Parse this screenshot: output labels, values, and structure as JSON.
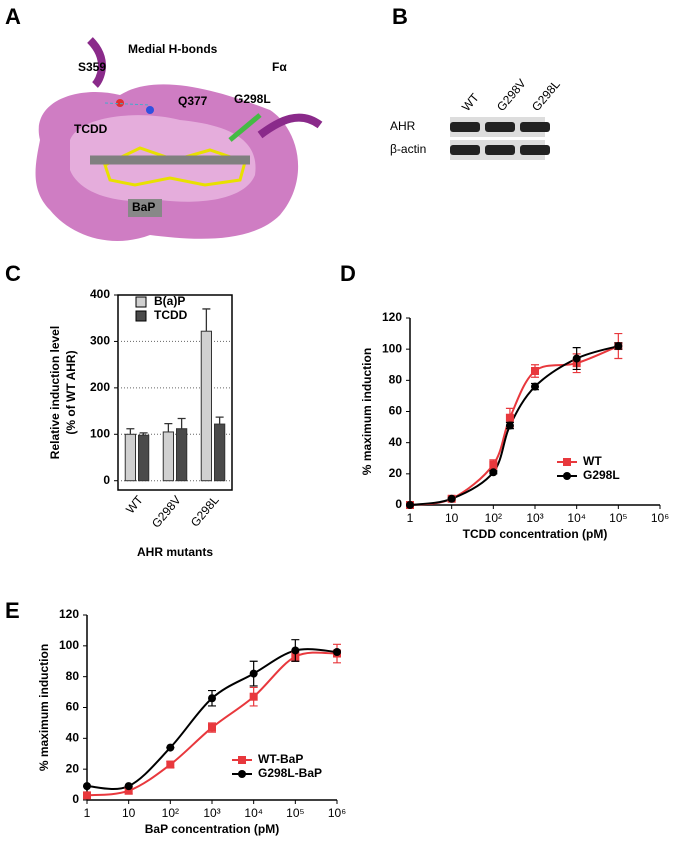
{
  "panel_labels": [
    "A",
    "B",
    "C",
    "D",
    "E"
  ],
  "structure": {
    "labels": [
      "Medial H-bonds",
      "S359",
      "Q377",
      "Fα",
      "G298L",
      "TCDD",
      "BaP"
    ]
  },
  "blot": {
    "lanes": [
      "WT",
      "G298V",
      "G298L"
    ],
    "rows": [
      "AHR",
      "β-actin"
    ]
  },
  "chart_data": [
    {
      "type": "bar",
      "categories": [
        "WT",
        "G298V",
        "G298L"
      ],
      "series": [
        {
          "name": "B(a)P",
          "color": "#d0d0d0",
          "values": [
            100,
            105,
            322
          ],
          "errors": [
            12,
            18,
            48
          ]
        },
        {
          "name": "TCDD",
          "color": "#4a4a4a",
          "values": [
            98,
            112,
            122
          ],
          "errors": [
            5,
            22,
            15
          ]
        }
      ],
      "ylim": [
        -20,
        400
      ],
      "yticks": [
        0,
        100,
        200,
        300,
        400
      ],
      "grid": true,
      "xlabel": "AHR mutants",
      "ylabel": [
        "Relative induction level",
        "(% of WT AHR)"
      ],
      "legend": "upper-left"
    },
    {
      "type": "line",
      "xscale": "log",
      "x": [
        1,
        10,
        100,
        250,
        1000,
        10000,
        100000
      ],
      "series": [
        {
          "name": "WT",
          "color": "#e8383d",
          "marker": "square",
          "values": [
            0,
            4,
            26,
            56,
            86,
            91,
            102
          ],
          "errors": [
            1,
            1,
            3,
            6,
            4,
            6,
            8
          ]
        },
        {
          "name": "G298L",
          "color": "#000000",
          "marker": "circle",
          "values": [
            0,
            4,
            21,
            51,
            76,
            94,
            102
          ],
          "errors": [
            0,
            0,
            1,
            2,
            2,
            7,
            2
          ]
        }
      ],
      "xlim": [
        1,
        1000000
      ],
      "xticks": [
        1,
        10,
        {
          "value": 100,
          "label": "10²"
        },
        {
          "value": 1000,
          "label": "10³"
        },
        {
          "value": 10000,
          "label": "10⁴"
        },
        {
          "value": 100000,
          "label": "10⁵"
        },
        {
          "value": 1000000,
          "label": "10⁶"
        }
      ],
      "ylim": [
        0,
        120
      ],
      "yticks": [
        0,
        20,
        40,
        60,
        80,
        100,
        120
      ],
      "xlabel": "TCDD concentration (pM)",
      "ylabel": "% maximum induction",
      "legend": "lower-right"
    },
    {
      "type": "line",
      "xscale": "log",
      "x": [
        1,
        10,
        100,
        1000,
        10000,
        100000,
        1000000
      ],
      "series": [
        {
          "name": "WT-BaP",
          "color": "#e8383d",
          "marker": "square",
          "values": [
            3,
            6,
            23,
            47,
            67,
            93,
            95
          ],
          "errors": [
            0,
            2,
            2,
            3,
            6,
            3,
            6
          ]
        },
        {
          "name": "G298L-BaP",
          "color": "#000000",
          "marker": "circle",
          "values": [
            9,
            9,
            34,
            66,
            82,
            97,
            96
          ],
          "errors": [
            0,
            0,
            0,
            5,
            8,
            7,
            0
          ]
        }
      ],
      "xlim": [
        1,
        1000000
      ],
      "xticks": [
        1,
        10,
        {
          "value": 100,
          "label": "10²"
        },
        {
          "value": 1000,
          "label": "10³"
        },
        {
          "value": 10000,
          "label": "10⁴"
        },
        {
          "value": 100000,
          "label": "10⁵"
        },
        {
          "value": 1000000,
          "label": "10⁶"
        }
      ],
      "ylim": [
        0,
        120
      ],
      "yticks": [
        0,
        20,
        40,
        60,
        80,
        100,
        120
      ],
      "xlabel": "BaP concentration (pM)",
      "ylabel": "% maximum induction",
      "legend": "lower-right"
    }
  ]
}
